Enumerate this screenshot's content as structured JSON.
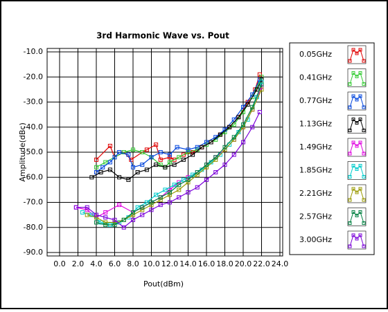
{
  "chart_data": {
    "type": "line",
    "title": "3rd Harmonic Wave vs. Pout",
    "xlabel": "Pout(dBm)",
    "ylabel": "Amplitude(dBc)",
    "xlim": [
      0,
      24
    ],
    "ylim": [
      -90,
      -10
    ],
    "xticks": [
      {
        "value": 0,
        "label": "0.0"
      },
      {
        "value": 2,
        "label": "2.0"
      },
      {
        "value": 4,
        "label": "4.0"
      },
      {
        "value": 6,
        "label": "6.0"
      },
      {
        "value": 8,
        "label": "8.0"
      },
      {
        "value": 10,
        "label": "10.0"
      },
      {
        "value": 12,
        "label": "12.0"
      },
      {
        "value": 14,
        "label": "14.0"
      },
      {
        "value": 16,
        "label": "16.0"
      },
      {
        "value": 18,
        "label": "18.0"
      },
      {
        "value": 20,
        "label": "20.0"
      },
      {
        "value": 22,
        "label": "22.0"
      },
      {
        "value": 24,
        "label": "24.0"
      }
    ],
    "yticks": [
      {
        "value": -10,
        "label": "-10.0"
      },
      {
        "value": -20,
        "label": "-20.0"
      },
      {
        "value": -30,
        "label": "-30.0"
      },
      {
        "value": -40,
        "label": "-40.0"
      },
      {
        "value": -50,
        "label": "-50.0"
      },
      {
        "value": -60,
        "label": "-60.0"
      },
      {
        "value": -70,
        "label": "-70.0"
      },
      {
        "value": -80,
        "label": "-80.0"
      },
      {
        "value": -90,
        "label": "-90.0"
      }
    ],
    "grid": true,
    "legend": "right",
    "series": [
      {
        "name": "0.05GHz",
        "color": "#e00000",
        "x": [
          4,
          5.5,
          6,
          7,
          7.8,
          9,
          9.5,
          10.5,
          11,
          12,
          12.5,
          13.5,
          14.5,
          15.5,
          16.5,
          17.5,
          18.5,
          19.5,
          20.5,
          21.3,
          21.8
        ],
        "values": [
          -53,
          -47.5,
          -52,
          -50,
          -53,
          -50,
          -49,
          -47,
          -53,
          -52,
          -53,
          -51,
          -50,
          -48,
          -46,
          -43,
          -40,
          -36,
          -30,
          -25,
          -19
        ]
      },
      {
        "name": "0.41GHz",
        "color": "#33cc33",
        "x": [
          4,
          5,
          6,
          7,
          8,
          9,
          10,
          11,
          11.5,
          12,
          13,
          14,
          15,
          16,
          17,
          18,
          19,
          20,
          21,
          22
        ],
        "values": [
          -56,
          -54,
          -52,
          -50,
          -49,
          -50,
          -52,
          -55,
          -56,
          -54,
          -52,
          -50,
          -49,
          -47,
          -45,
          -42,
          -39,
          -34,
          -28,
          -20
        ]
      },
      {
        "name": "0.77GHz",
        "color": "#0044dd",
        "x": [
          4,
          4.7,
          5.5,
          6,
          6.5,
          7.5,
          8,
          9,
          10,
          11,
          12,
          12.8,
          14,
          15,
          16,
          17,
          18,
          19,
          20,
          21,
          21.8
        ],
        "values": [
          -58,
          -56,
          -54,
          -52,
          -50,
          -51,
          -56,
          -55,
          -52,
          -50,
          -51,
          -48,
          -49,
          -48,
          -46,
          -44,
          -41,
          -37,
          -32,
          -27,
          -21
        ]
      },
      {
        "name": "1.13GHz",
        "color": "#000000",
        "x": [
          3.5,
          4.5,
          5.5,
          6.5,
          7.5,
          8.5,
          9.5,
          10.5,
          11.5,
          12.5,
          13.5,
          14.5,
          15.5,
          16.5,
          17.5,
          18.5,
          19.5,
          20.5,
          21.5,
          22
        ],
        "values": [
          -60,
          -58,
          -57,
          -60,
          -61,
          -58,
          -57,
          -55,
          -56,
          -55,
          -53,
          -51,
          -48,
          -46,
          -43,
          -40,
          -36,
          -31,
          -25,
          -21
        ]
      },
      {
        "name": "1.49GHz",
        "color": "#e000e0",
        "x": [
          1.8,
          3,
          4,
          5,
          6.5,
          8,
          9,
          10,
          11,
          12,
          13,
          14,
          15,
          16,
          17,
          18,
          19,
          20,
          21,
          22
        ],
        "values": [
          -72,
          -73,
          -76,
          -74,
          -71,
          -74,
          -72,
          -70,
          -68,
          -65,
          -62,
          -60,
          -58,
          -55,
          -52,
          -49,
          -45,
          -40,
          -33,
          -24
        ]
      },
      {
        "name": "1.85GHz",
        "color": "#00cccc",
        "x": [
          2.5,
          3.5,
          4.5,
          5.5,
          6.5,
          7.5,
          8.5,
          9.5,
          10.5,
          11.5,
          12.5,
          13.5,
          14.5,
          15.5,
          16.5,
          17.5,
          18.5,
          19.5,
          20.5,
          21.5,
          22
        ],
        "values": [
          -74,
          -75,
          -78,
          -79,
          -78,
          -76,
          -72,
          -70,
          -67,
          -65,
          -63,
          -61,
          -59,
          -57,
          -54,
          -51,
          -47,
          -42,
          -37,
          -28,
          -22
        ]
      },
      {
        "name": "2.21GHz",
        "color": "#999900",
        "x": [
          3,
          4,
          5,
          6,
          7,
          8,
          9,
          10,
          11,
          12,
          13,
          14,
          15,
          16,
          17,
          18,
          19,
          20,
          21,
          22
        ],
        "values": [
          -75,
          -76,
          -78,
          -78,
          -77,
          -75,
          -73,
          -71,
          -69,
          -67,
          -65,
          -62,
          -59,
          -56,
          -53,
          -49,
          -45,
          -40,
          -33,
          -25
        ]
      },
      {
        "name": "2.57GHz",
        "color": "#008040",
        "x": [
          4,
          5,
          6,
          7,
          8,
          9,
          10,
          11,
          12,
          13,
          14,
          15,
          16,
          17,
          18,
          19,
          20,
          21,
          22
        ],
        "values": [
          -78,
          -79,
          -79,
          -77,
          -74,
          -72,
          -70,
          -68,
          -66,
          -63,
          -61,
          -58,
          -55,
          -52,
          -48,
          -44,
          -39,
          -32,
          -23
        ]
      },
      {
        "name": "3.00GHz",
        "color": "#7a00d9",
        "x": [
          1.8,
          3,
          4,
          5,
          6,
          7,
          8,
          9,
          10,
          11,
          12,
          13,
          14,
          15,
          16,
          17,
          18,
          19,
          20,
          21,
          21.8
        ],
        "values": [
          -72,
          -72,
          -75,
          -76,
          -77,
          -80,
          -77,
          -75,
          -73,
          -71,
          -70,
          -68,
          -66,
          -64,
          -61,
          -58,
          -55,
          -51,
          -46,
          -40,
          -34
        ]
      }
    ]
  }
}
